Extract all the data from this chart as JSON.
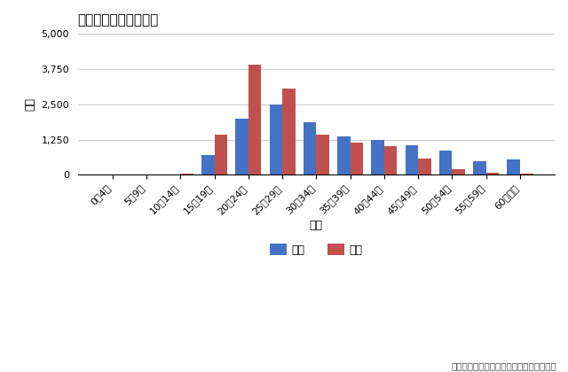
{
  "title": "性器クラミジア感染症",
  "xlabel": "年齢",
  "ylabel": "人数",
  "categories": [
    "0〜4歳",
    "5〜9歳",
    "10〜14歳",
    "15〜19歳",
    "20〜24歳",
    "25〜29歳",
    "30〜34歳",
    "35〜39歳",
    "40〜44歳",
    "45〜49歳",
    "50〜54歳",
    "55〜59歳",
    "60歳以上"
  ],
  "male": [
    0,
    0,
    0,
    700,
    2000,
    2480,
    1870,
    1350,
    1240,
    1050,
    870,
    490,
    530
  ],
  "female": [
    0,
    0,
    30,
    1420,
    3900,
    3050,
    1420,
    1150,
    1000,
    580,
    200,
    60,
    30
  ],
  "male_color": "#4472C4",
  "female_color": "#C0504D",
  "legend_male": "男性",
  "legend_female": "女性",
  "ylim": [
    0,
    5000
  ],
  "yticks": [
    0,
    1250,
    2500,
    3750,
    5000
  ],
  "source": "出典：厚生労働省「性感染症報告数」より",
  "bg_color": "#FFFFFF",
  "grid_color": "#C8C8C8",
  "title_fontsize": 11,
  "axis_fontsize": 9,
  "tick_fontsize": 8,
  "source_fontsize": 7.5
}
